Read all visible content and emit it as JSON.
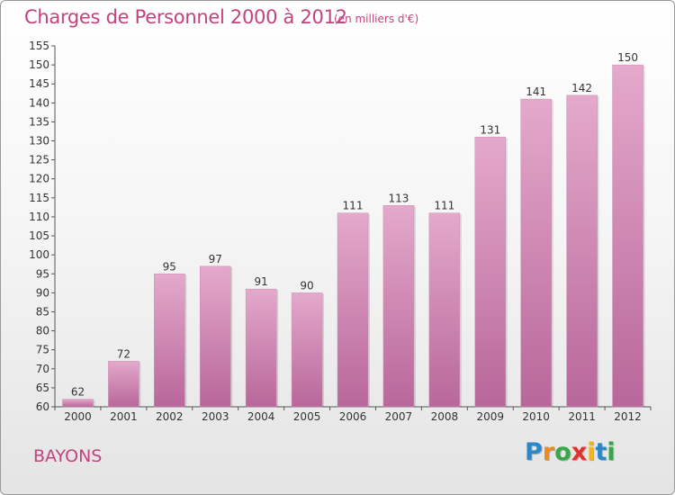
{
  "title": "Charges de Personnel 2000 à 2012",
  "subtitle": "(en milliers d'€)",
  "commune": "BAYONS",
  "logo": {
    "letters": [
      "P",
      "r",
      "o",
      "x",
      "i",
      "t",
      "i"
    ],
    "colors": [
      "#2a87c8",
      "#f08a1e",
      "#3aa64a",
      "#e0332f",
      "#f2b51a",
      "#2a87c8",
      "#3aa64a"
    ]
  },
  "colors": {
    "bar_top": "#e4a9cb",
    "bar_bottom": "#b8679a",
    "text": "#c2437e"
  },
  "chart_data": {
    "type": "bar",
    "title": "Charges de Personnel 2000 à 2012",
    "subtitle": "(en milliers d'€)",
    "categories": [
      "2000",
      "2001",
      "2002",
      "2003",
      "2004",
      "2005",
      "2006",
      "2007",
      "2008",
      "2009",
      "2010",
      "2011",
      "2012"
    ],
    "values": [
      62,
      72,
      95,
      97,
      91,
      90,
      111,
      113,
      111,
      131,
      141,
      142,
      150
    ],
    "ylim": [
      60,
      155
    ],
    "yticks": [
      60,
      65,
      70,
      75,
      80,
      85,
      90,
      95,
      100,
      105,
      110,
      115,
      120,
      125,
      130,
      135,
      140,
      145,
      150,
      155
    ],
    "grid": false
  }
}
